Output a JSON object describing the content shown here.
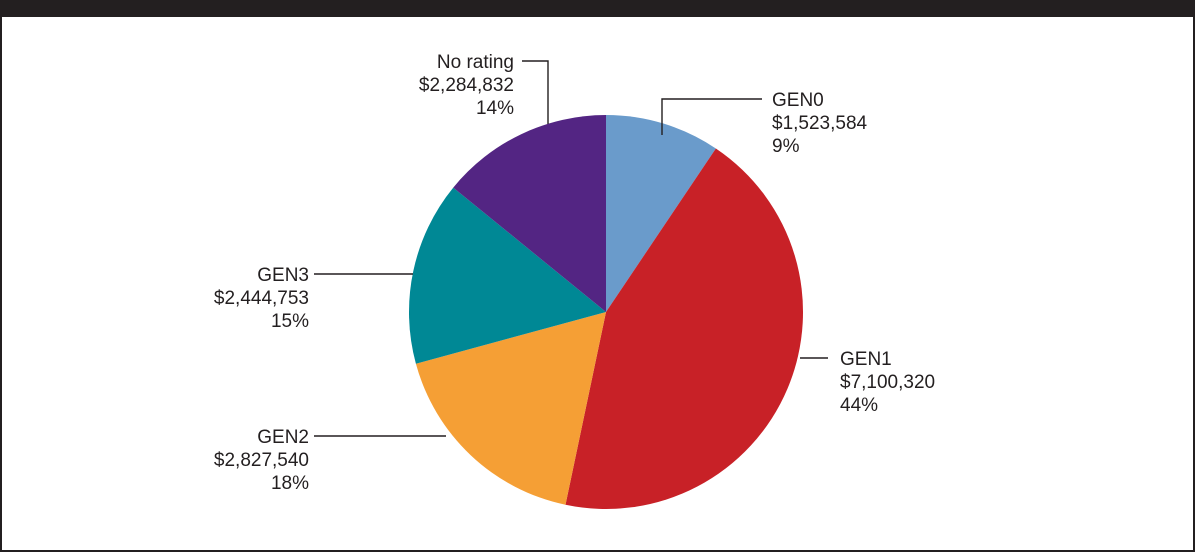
{
  "chart_data": {
    "type": "pie",
    "title": "",
    "start": "top",
    "direction": "clockwise",
    "slices": [
      {
        "name": "GEN0",
        "value": 1523584,
        "value_label": "$1,523,584",
        "percent_label": "9%",
        "color": "#6a9bcb"
      },
      {
        "name": "GEN1",
        "value": 7100320,
        "value_label": "$7,100,320",
        "percent_label": "44%",
        "color": "#c82127"
      },
      {
        "name": "GEN2",
        "value": 2827540,
        "value_label": "$2,827,540",
        "percent_label": "18%",
        "color": "#f59f35"
      },
      {
        "name": "GEN3",
        "value": 2444753,
        "value_label": "$2,444,753",
        "percent_label": "15%",
        "color": "#008895"
      },
      {
        "name": "No rating",
        "value": 2284832,
        "value_label": "$2,284,832",
        "percent_label": "14%",
        "color": "#532583"
      }
    ]
  }
}
